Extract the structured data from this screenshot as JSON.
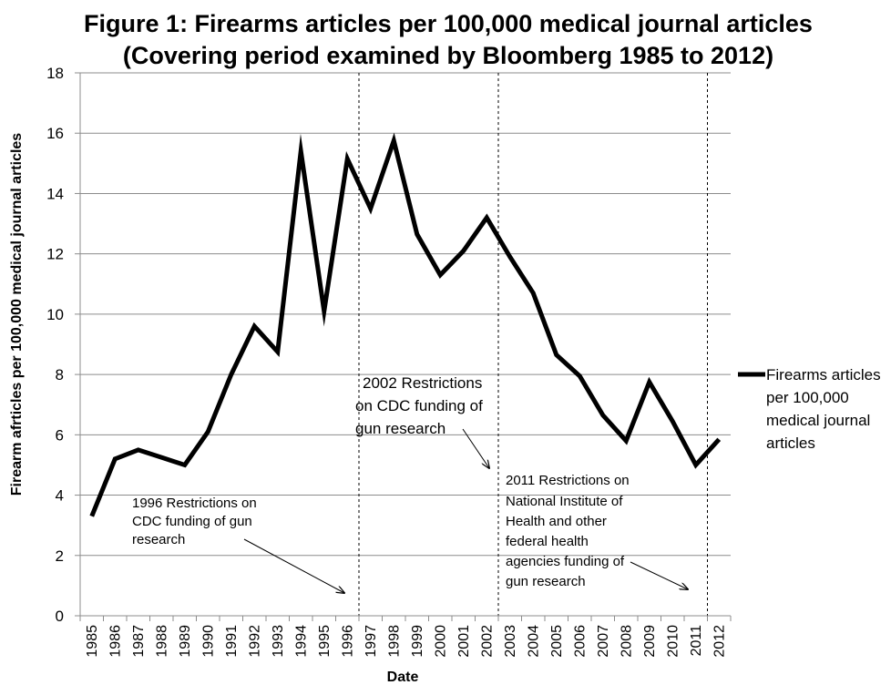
{
  "chart_data": {
    "type": "line",
    "title": [
      "Figure 1: Firearms articles per 100,000 medical journal articles",
      "(Covering period examined by Bloomberg 1985 to 2012)"
    ],
    "xlabel": "Date",
    "ylabel": "Firearm afrticles per 100,000 medical journal articles",
    "ylim": [
      0,
      18
    ],
    "yticks": [
      "0",
      "2",
      "4",
      "6",
      "8",
      "10",
      "12",
      "14",
      "16",
      "18"
    ],
    "categories": [
      "1985",
      "1986",
      "1987",
      "1988",
      "1989",
      "1990",
      "1991",
      "1992",
      "1993",
      "1994",
      "1995",
      "1996",
      "1997",
      "1998",
      "1999",
      "2000",
      "2001",
      "2002",
      "2003",
      "2004",
      "2005",
      "2006",
      "2007",
      "2008",
      "2009",
      "2010",
      "2011",
      "2012"
    ],
    "series": [
      {
        "name": [
          "Firearms articles",
          "per 100,000",
          "medical journal",
          "articles"
        ],
        "color": "#000000",
        "values": [
          3.3,
          5.2,
          5.5,
          5.25,
          5.0,
          6.1,
          8.0,
          9.6,
          8.75,
          15.4,
          10.1,
          15.15,
          13.5,
          15.75,
          12.65,
          11.3,
          12.1,
          13.2,
          11.9,
          10.7,
          8.65,
          7.95,
          6.65,
          5.8,
          7.75,
          6.45,
          5.0,
          5.85
        ]
      }
    ],
    "grid": true,
    "legend_position": "right",
    "vertical_markers": [
      {
        "after_category": "1996"
      },
      {
        "after_category": "2002"
      },
      {
        "after_category": "2011"
      }
    ],
    "annotations": [
      {
        "lines": [
          "1996 Restrictions on",
          "CDC funding of gun",
          "research"
        ]
      },
      {
        "lines": [
          "2002 Restrictions",
          "on CDC funding of",
          "gun research"
        ]
      },
      {
        "lines": [
          "2011 Restrictions on",
          "National Institute of",
          "Health and other",
          "federal health",
          "agencies funding of",
          "gun research"
        ]
      }
    ]
  }
}
